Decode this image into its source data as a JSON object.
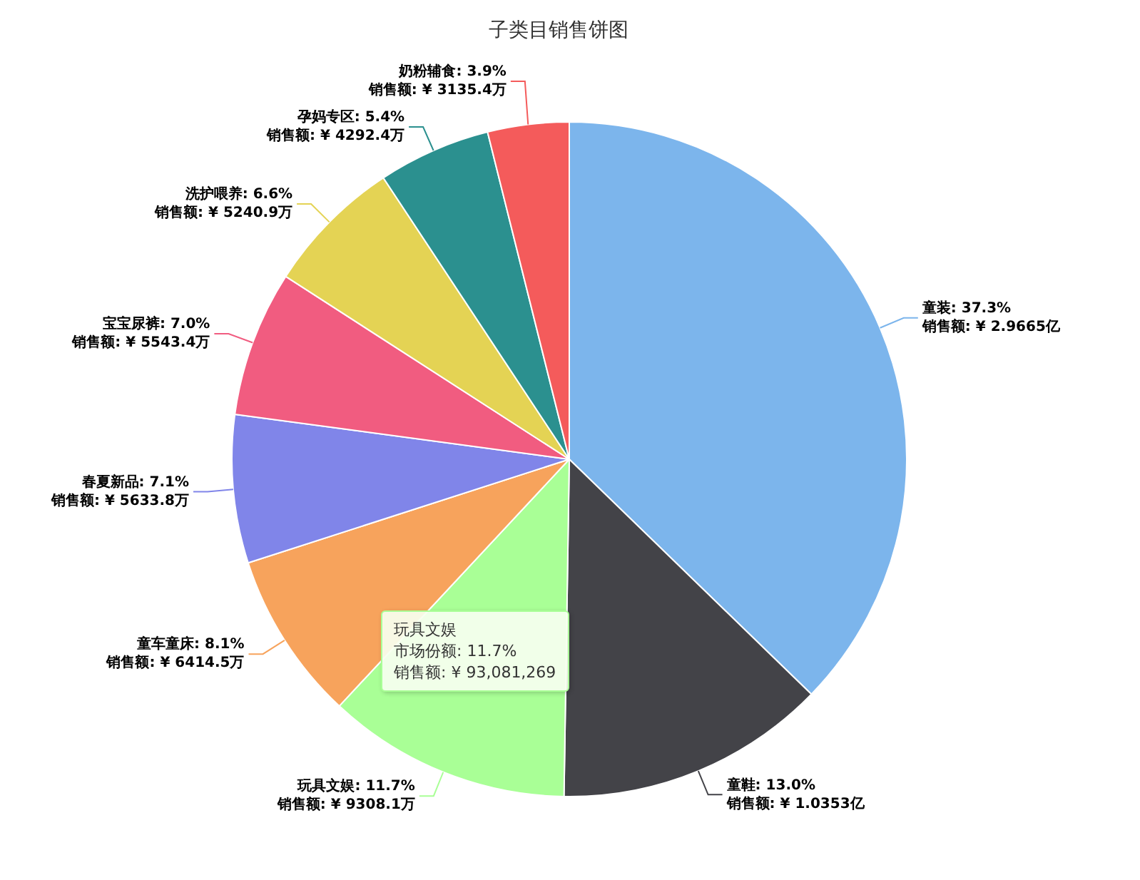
{
  "chart_data": {
    "type": "pie",
    "title": "子类目销售饼图",
    "categories": [
      "童装",
      "童鞋",
      "玩具文娱",
      "童车童床",
      "春夏新品",
      "宝宝尿裤",
      "洗护喂养",
      "孕妈专区",
      "奶粉辅食"
    ],
    "values": [
      37.3,
      13.0,
      11.7,
      8.1,
      7.1,
      7.0,
      6.6,
      5.4,
      3.9
    ],
    "colors": [
      "#7cb5ec",
      "#434348",
      "#a9ff96",
      "#f7a35c",
      "#8085e9",
      "#f15c80",
      "#e4d354",
      "#2b908f",
      "#f45b5b"
    ],
    "value_labels": [
      ": 37.3%\n销售额: ¥ 2.9665亿",
      ": 13.0%\n销售额: ¥ 1.0353亿",
      ": 11.7%\n销售额: ¥ 9308.1万",
      ": 8.1%\n销售额: ¥ 6414.5万",
      ": 7.1%\n销售额: ¥ 5633.8万",
      ": 7.0%\n销售额: ¥ 5543.4万",
      ": 6.6%\n销售额: ¥ 5240.9万",
      ": 5.4%\n销售额: ¥ 4292.4万",
      ": 3.9%\n销售额: ¥ 3135.4万"
    ],
    "annotations": [
      "玩具文娱",
      "市场份额: 11.7%",
      "销售额: ¥ 93,081,269"
    ]
  }
}
